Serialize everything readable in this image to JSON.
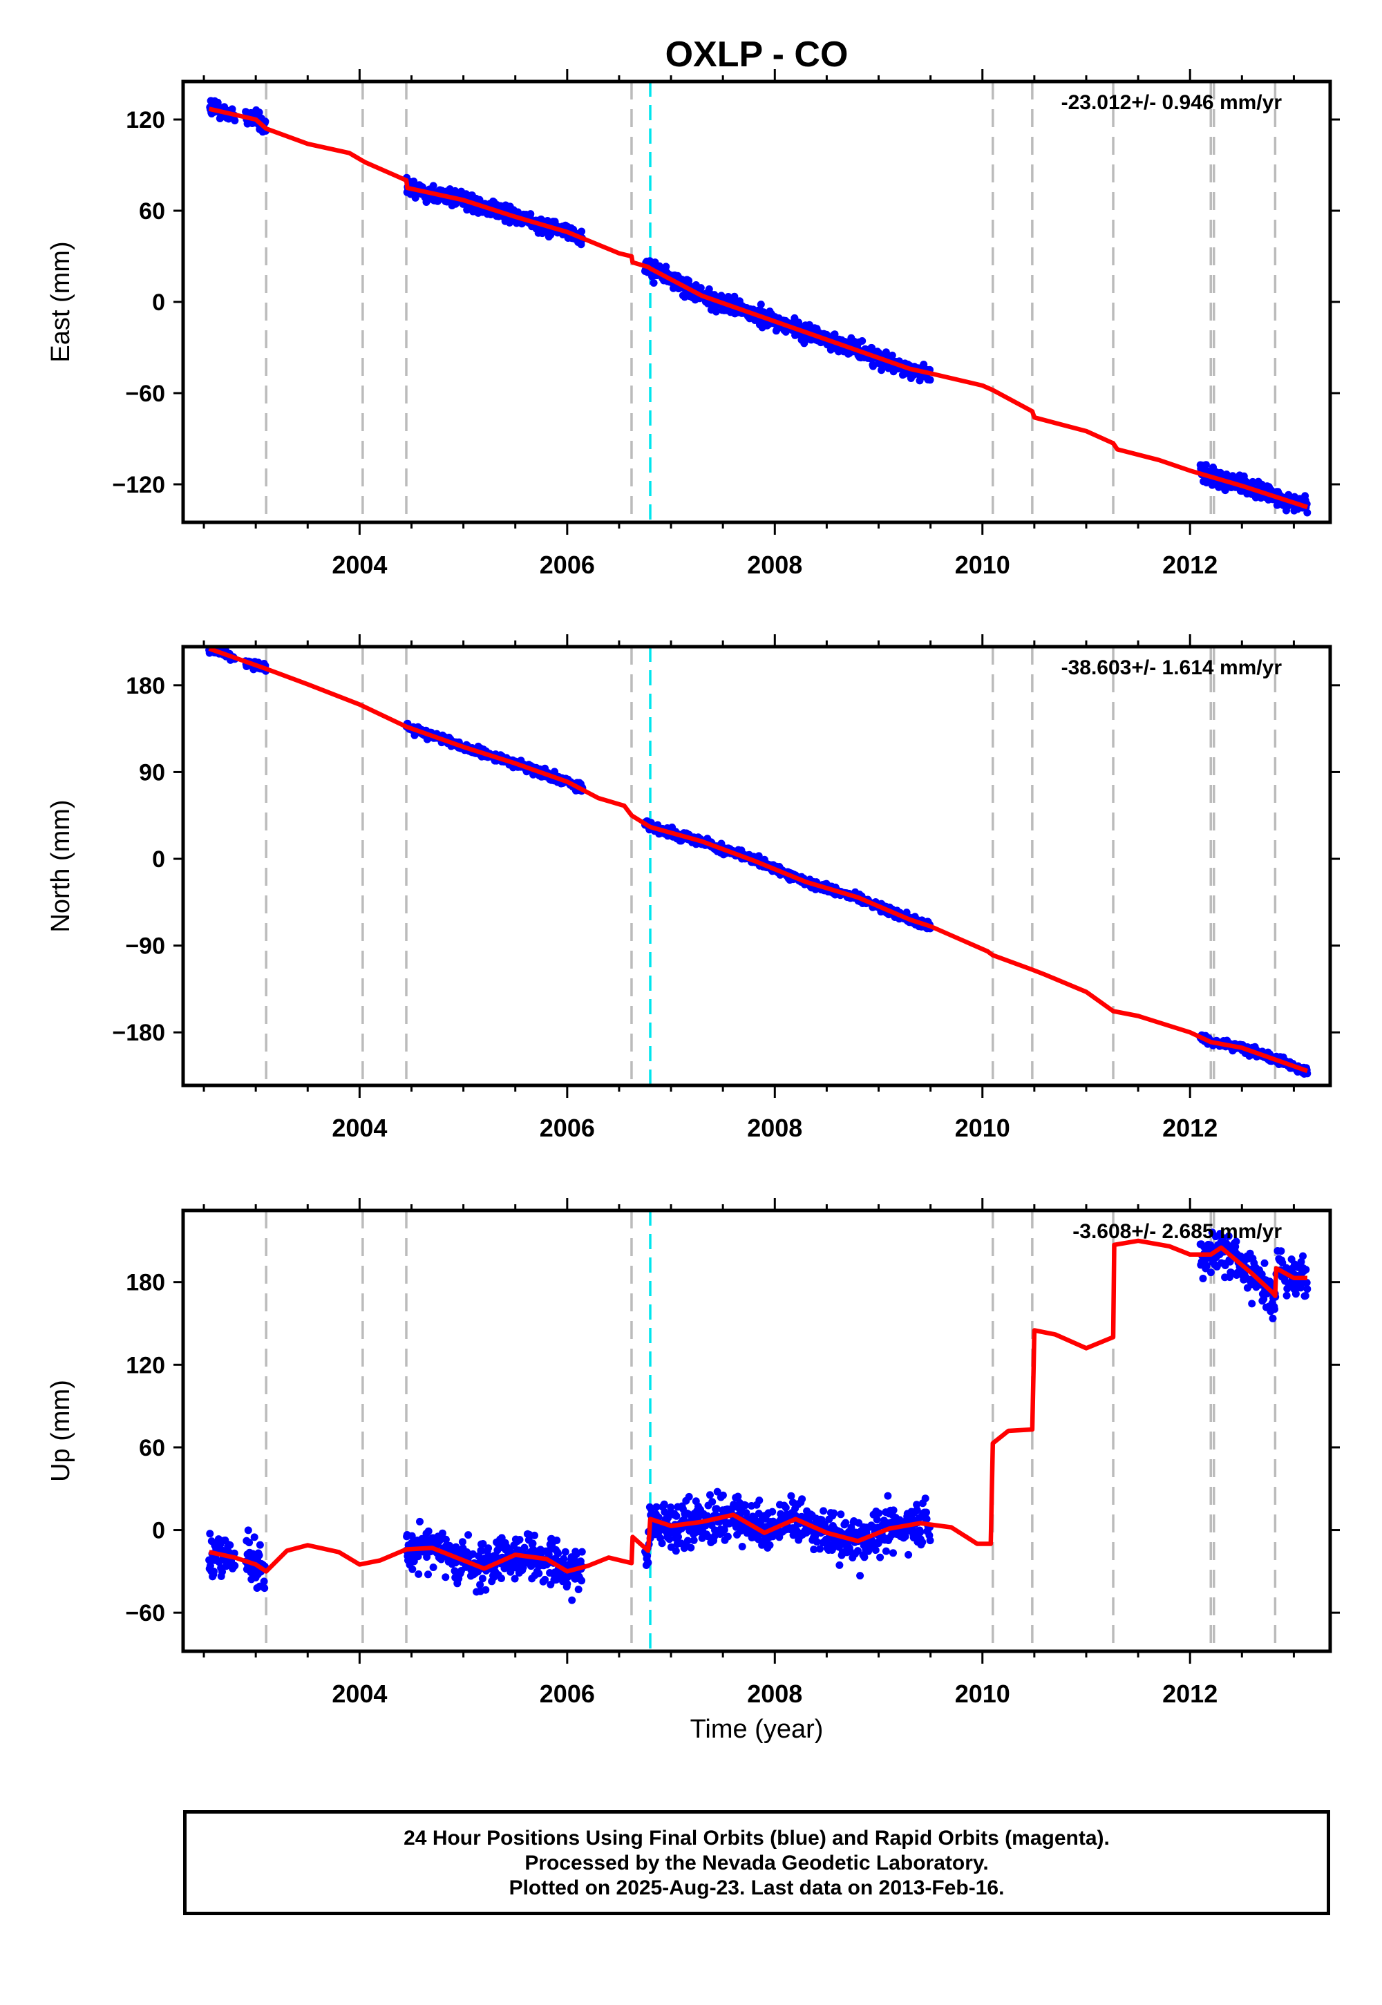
{
  "title": "OXLP - CO",
  "xlabel": "Time (year)",
  "footer": {
    "line1": "24 Hour Positions Using Final Orbits (blue) and Rapid Orbits (magenta).",
    "line2": "Processed by the Nevada Geodetic Laboratory.",
    "line3": "Plotted on 2025-Aug-23. Last data on 2013-Feb-16."
  },
  "colors": {
    "data_points": "#0000ff",
    "model_line": "#ff0000",
    "equipment_change": "#bbbbbb",
    "earthquake": "#00e5ee"
  },
  "chart_data": [
    {
      "type": "scatter",
      "panel": "east",
      "ylabel": "East (mm)",
      "rate": "-23.012+/- 0.946 mm/yr",
      "xlim": [
        2002.3,
        2013.35
      ],
      "ylim": [
        -145,
        145
      ],
      "yticks": [
        120,
        60,
        0,
        -60,
        -120
      ],
      "xticks": [
        2004,
        2006,
        2008,
        2010,
        2012
      ],
      "data_segments": [
        {
          "start": 2002.55,
          "end": 2003.1,
          "gaps": [
            [
              2002.8,
              2002.9
            ]
          ]
        },
        {
          "start": 2004.45,
          "end": 2006.15
        },
        {
          "start": 2006.75,
          "end": 2009.5
        },
        {
          "start": 2012.1,
          "end": 2013.13
        }
      ],
      "model": [
        [
          2002.55,
          127
        ],
        [
          2003.0,
          120
        ],
        [
          2003.1,
          114
        ],
        [
          2003.5,
          104
        ],
        [
          2003.9,
          98
        ],
        [
          2004.05,
          92
        ],
        [
          2004.45,
          80
        ],
        [
          2004.46,
          75
        ],
        [
          2005.0,
          67
        ],
        [
          2005.5,
          56
        ],
        [
          2006.0,
          46
        ],
        [
          2006.5,
          32
        ],
        [
          2006.62,
          30
        ],
        [
          2006.63,
          26
        ],
        [
          2006.78,
          23
        ],
        [
          2006.8,
          22
        ],
        [
          2007.3,
          4
        ],
        [
          2007.8,
          -8
        ],
        [
          2008.3,
          -20
        ],
        [
          2008.8,
          -32
        ],
        [
          2009.3,
          -44
        ],
        [
          2009.5,
          -47
        ],
        [
          2010.0,
          -55
        ],
        [
          2010.1,
          -58
        ],
        [
          2010.48,
          -72
        ],
        [
          2010.5,
          -76
        ],
        [
          2011.0,
          -85
        ],
        [
          2011.26,
          -93
        ],
        [
          2011.3,
          -97
        ],
        [
          2011.7,
          -104
        ],
        [
          2012.0,
          -111
        ],
        [
          2012.5,
          -121
        ],
        [
          2013.13,
          -135
        ]
      ]
    },
    {
      "type": "scatter",
      "panel": "north",
      "ylabel": "North (mm)",
      "rate": "-38.603+/- 1.614 mm/yr",
      "xlim": [
        2002.3,
        2013.35
      ],
      "ylim": [
        -235,
        220
      ],
      "yticks": [
        180,
        90,
        0,
        -90,
        -180
      ],
      "xticks": [
        2004,
        2006,
        2008,
        2010,
        2012
      ],
      "data_segments": [
        {
          "start": 2002.55,
          "end": 2003.1,
          "gaps": [
            [
              2002.8,
              2002.9
            ]
          ]
        },
        {
          "start": 2004.45,
          "end": 2006.15
        },
        {
          "start": 2006.75,
          "end": 2009.5
        },
        {
          "start": 2012.1,
          "end": 2013.13
        }
      ],
      "model": [
        [
          2002.55,
          218
        ],
        [
          2003.1,
          197
        ],
        [
          2003.5,
          181
        ],
        [
          2004.0,
          160
        ],
        [
          2004.45,
          137
        ],
        [
          2005.0,
          116
        ],
        [
          2005.5,
          99
        ],
        [
          2006.0,
          80
        ],
        [
          2006.3,
          63
        ],
        [
          2006.55,
          55
        ],
        [
          2006.62,
          45
        ],
        [
          2006.8,
          33
        ],
        [
          2007.3,
          18
        ],
        [
          2007.8,
          -2
        ],
        [
          2008.3,
          -24
        ],
        [
          2008.8,
          -40
        ],
        [
          2009.3,
          -63
        ],
        [
          2009.5,
          -70
        ],
        [
          2010.05,
          -96
        ],
        [
          2010.1,
          -100
        ],
        [
          2010.48,
          -115
        ],
        [
          2010.6,
          -120
        ],
        [
          2011.0,
          -138
        ],
        [
          2011.26,
          -158
        ],
        [
          2011.5,
          -163
        ],
        [
          2012.0,
          -180
        ],
        [
          2012.2,
          -190
        ],
        [
          2012.5,
          -196
        ],
        [
          2013.13,
          -220
        ]
      ]
    },
    {
      "type": "scatter",
      "panel": "up",
      "ylabel": "Up (mm)",
      "rate": "-3.608+/- 2.685 mm/yr",
      "xlim": [
        2002.3,
        2013.35
      ],
      "ylim": [
        -88,
        232
      ],
      "yticks": [
        180,
        120,
        60,
        0,
        -60
      ],
      "xticks": [
        2004,
        2006,
        2008,
        2010,
        2012
      ],
      "data_segments": [
        {
          "start": 2002.55,
          "end": 2003.1,
          "gaps": [
            [
              2002.8,
              2002.9
            ]
          ]
        },
        {
          "start": 2004.45,
          "end": 2006.15
        },
        {
          "start": 2006.75,
          "end": 2009.5
        },
        {
          "start": 2012.1,
          "end": 2013.13
        }
      ],
      "model": [
        [
          2002.55,
          -16
        ],
        [
          2002.8,
          -20
        ],
        [
          2003.0,
          -25
        ],
        [
          2003.1,
          -30
        ],
        [
          2003.3,
          -15
        ],
        [
          2003.5,
          -11
        ],
        [
          2003.8,
          -16
        ],
        [
          2004.0,
          -25
        ],
        [
          2004.2,
          -22
        ],
        [
          2004.45,
          -14
        ],
        [
          2004.7,
          -13
        ],
        [
          2005.0,
          -22
        ],
        [
          2005.2,
          -28
        ],
        [
          2005.5,
          -18
        ],
        [
          2005.8,
          -21
        ],
        [
          2006.0,
          -30
        ],
        [
          2006.2,
          -26
        ],
        [
          2006.4,
          -20
        ],
        [
          2006.62,
          -24
        ],
        [
          2006.63,
          -5
        ],
        [
          2006.78,
          -15
        ],
        [
          2006.8,
          8
        ],
        [
          2007.0,
          3
        ],
        [
          2007.3,
          6
        ],
        [
          2007.6,
          11
        ],
        [
          2007.9,
          -2
        ],
        [
          2008.2,
          8
        ],
        [
          2008.5,
          -2
        ],
        [
          2008.8,
          -8
        ],
        [
          2009.1,
          1
        ],
        [
          2009.4,
          5
        ],
        [
          2009.7,
          2
        ],
        [
          2009.95,
          -10
        ],
        [
          2010.08,
          -10
        ],
        [
          2010.1,
          63
        ],
        [
          2010.25,
          72
        ],
        [
          2010.48,
          73
        ],
        [
          2010.5,
          145
        ],
        [
          2010.7,
          142
        ],
        [
          2011.0,
          132
        ],
        [
          2011.26,
          140
        ],
        [
          2011.27,
          207
        ],
        [
          2011.5,
          210
        ],
        [
          2011.8,
          206
        ],
        [
          2012.0,
          200
        ],
        [
          2012.2,
          200
        ],
        [
          2012.3,
          205
        ],
        [
          2012.6,
          186
        ],
        [
          2012.8,
          172
        ],
        [
          2012.82,
          170
        ],
        [
          2012.83,
          190
        ],
        [
          2013.0,
          183
        ],
        [
          2013.13,
          183
        ]
      ]
    }
  ],
  "equipment_change_years": [
    2003.1,
    2004.03,
    2004.45,
    2006.62,
    2010.1,
    2010.48,
    2011.26,
    2012.2,
    2012.23,
    2012.82
  ],
  "earthquake_years": [
    2006.8
  ]
}
